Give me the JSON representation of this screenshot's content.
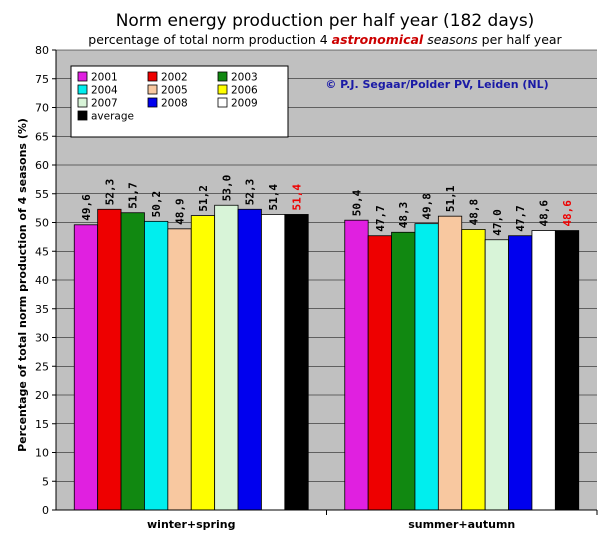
{
  "chart_data": {
    "type": "bar",
    "title": "Norm energy production per half year (182 days)",
    "subtitle": {
      "part1": "percentage of total norm production 4 ",
      "part2": "astronomical",
      "part3": "seasons",
      "part4": " per half year"
    },
    "ylabel": "Percentage of total norm production of 4 seasons (%)",
    "xlabel": "",
    "ylim": [
      0,
      80
    ],
    "yticks": [
      "0",
      "5",
      "10",
      "15",
      "20",
      "25",
      "30",
      "35",
      "40",
      "45",
      "50",
      "55",
      "60",
      "65",
      "70",
      "75",
      "80"
    ],
    "grid": true,
    "legend_position": "top-left",
    "annotation": "© P.J. Segaar/Polder PV, Leiden (NL)",
    "categories": [
      "winter+spring",
      "summer+autumn"
    ],
    "series": [
      {
        "name": "2001",
        "color": "#e020e0",
        "values": [
          49.6,
          50.4
        ],
        "labels": [
          "49,6",
          "50,4"
        ]
      },
      {
        "name": "2002",
        "color": "#ee0000",
        "values": [
          52.3,
          47.7
        ],
        "labels": [
          "52,3",
          "47,7"
        ]
      },
      {
        "name": "2003",
        "color": "#118811",
        "values": [
          51.7,
          48.3
        ],
        "labels": [
          "51,7",
          "48,3"
        ]
      },
      {
        "name": "2004",
        "color": "#00eeee",
        "values": [
          50.2,
          49.8
        ],
        "labels": [
          "50,2",
          "49,8"
        ]
      },
      {
        "name": "2005",
        "color": "#f8c8a0",
        "values": [
          48.9,
          51.1
        ],
        "labels": [
          "48,9",
          "51,1"
        ]
      },
      {
        "name": "2006",
        "color": "#ffff00",
        "values": [
          51.2,
          48.8
        ],
        "labels": [
          "51,2",
          "48,8"
        ]
      },
      {
        "name": "2007",
        "color": "#d8f4d8",
        "values": [
          53.0,
          47.0
        ],
        "labels": [
          "53,0",
          "47,0"
        ]
      },
      {
        "name": "2008",
        "color": "#0000ee",
        "values": [
          52.3,
          47.7
        ],
        "labels": [
          "52,3",
          "47,7"
        ]
      },
      {
        "name": "2009",
        "color": "#ffffff",
        "values": [
          51.4,
          48.6
        ],
        "labels": [
          "51,4",
          "48,6"
        ]
      },
      {
        "name": "average",
        "color": "#000000",
        "values": [
          51.4,
          48.6
        ],
        "labels": [
          "51,4",
          "48,6"
        ]
      }
    ],
    "colors": {
      "plot_background": "#c0c0c0",
      "average_label": "#ee0000",
      "annotation": "#1a1aa6"
    }
  }
}
